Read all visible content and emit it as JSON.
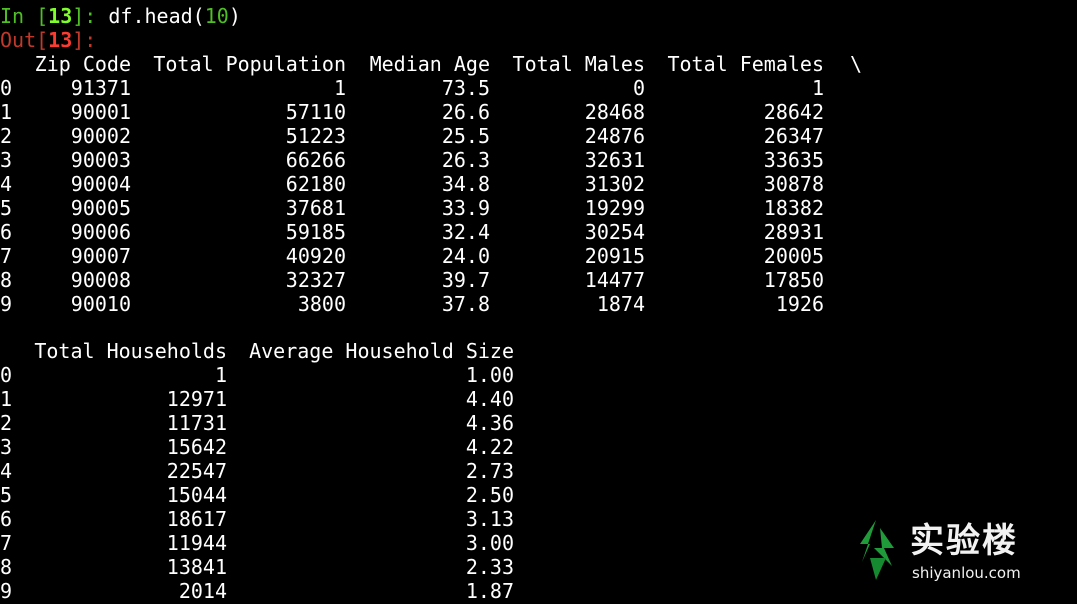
{
  "prompt": {
    "in_label": "In [",
    "in_number": "13",
    "in_suffix": "]: ",
    "code_prefix": "df.head(",
    "code_arg": "10",
    "code_suffix": ")",
    "out_label": "Out[",
    "out_number": "13",
    "out_suffix": "]:"
  },
  "table1": {
    "headers": [
      "Zip Code",
      "Total Population",
      "Median Age",
      "Total Males",
      "Total Females"
    ],
    "continuation": "\\",
    "rows": [
      {
        "index": "0",
        "cells": [
          "91371",
          "1",
          "73.5",
          "0",
          "1"
        ]
      },
      {
        "index": "1",
        "cells": [
          "90001",
          "57110",
          "26.6",
          "28468",
          "28642"
        ]
      },
      {
        "index": "2",
        "cells": [
          "90002",
          "51223",
          "25.5",
          "24876",
          "26347"
        ]
      },
      {
        "index": "3",
        "cells": [
          "90003",
          "66266",
          "26.3",
          "32631",
          "33635"
        ]
      },
      {
        "index": "4",
        "cells": [
          "90004",
          "62180",
          "34.8",
          "31302",
          "30878"
        ]
      },
      {
        "index": "5",
        "cells": [
          "90005",
          "37681",
          "33.9",
          "19299",
          "18382"
        ]
      },
      {
        "index": "6",
        "cells": [
          "90006",
          "59185",
          "32.4",
          "30254",
          "28931"
        ]
      },
      {
        "index": "7",
        "cells": [
          "90007",
          "40920",
          "24.0",
          "20915",
          "20005"
        ]
      },
      {
        "index": "8",
        "cells": [
          "90008",
          "32327",
          "39.7",
          "14477",
          "17850"
        ]
      },
      {
        "index": "9",
        "cells": [
          "90010",
          "3800",
          "37.8",
          "1874",
          "1926"
        ]
      }
    ]
  },
  "table2": {
    "headers": [
      "Total Households",
      "Average Household Size"
    ],
    "rows": [
      {
        "index": "0",
        "cells": [
          "1",
          "1.00"
        ]
      },
      {
        "index": "1",
        "cells": [
          "12971",
          "4.40"
        ]
      },
      {
        "index": "2",
        "cells": [
          "11731",
          "4.36"
        ]
      },
      {
        "index": "3",
        "cells": [
          "15642",
          "4.22"
        ]
      },
      {
        "index": "4",
        "cells": [
          "22547",
          "2.73"
        ]
      },
      {
        "index": "5",
        "cells": [
          "15044",
          "2.50"
        ]
      },
      {
        "index": "6",
        "cells": [
          "18617",
          "3.13"
        ]
      },
      {
        "index": "7",
        "cells": [
          "11944",
          "3.00"
        ]
      },
      {
        "index": "8",
        "cells": [
          "13841",
          "2.33"
        ]
      },
      {
        "index": "9",
        "cells": [
          "2014",
          "1.87"
        ]
      }
    ]
  },
  "watermark": {
    "brand": "实验楼",
    "domain": "shiyanlou.com",
    "logo_icon": "leaf-logo-icon"
  },
  "colors": {
    "background": "#000000",
    "text": "#ffffff",
    "prompt_in": "#4fbf26",
    "prompt_out": "#c0392b",
    "logo_green": "#1f9b3a"
  }
}
